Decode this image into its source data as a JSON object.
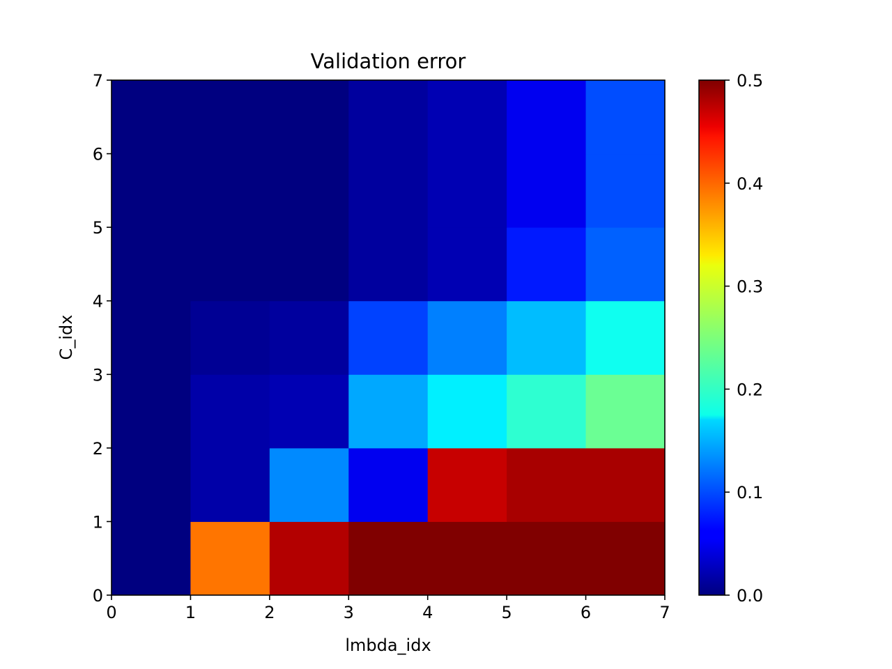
{
  "chart_data": {
    "type": "heatmap",
    "title": "Validation error",
    "xlabel": "lmbda_idx",
    "ylabel": "C_idx",
    "xlim": [
      0,
      7
    ],
    "ylim": [
      0,
      7
    ],
    "x_ticks": [
      "0",
      "1",
      "2",
      "3",
      "4",
      "5",
      "6",
      "7"
    ],
    "y_ticks": [
      "0",
      "1",
      "2",
      "3",
      "4",
      "5",
      "6",
      "7"
    ],
    "colormap": "jet",
    "color_range": [
      0.0,
      0.5
    ],
    "colorbar_ticks": [
      "0.0",
      "0.1",
      "0.2",
      "0.3",
      "0.4",
      "0.5"
    ],
    "grid": false,
    "rows_from_bottom": [
      [
        0.0,
        0.38,
        0.475,
        0.5,
        0.5,
        0.5,
        0.5
      ],
      [
        0.0,
        0.02,
        0.13,
        0.055,
        0.465,
        0.48,
        0.48
      ],
      [
        0.0,
        0.02,
        0.025,
        0.145,
        0.18,
        0.21,
        0.24
      ],
      [
        0.0,
        0.01,
        0.015,
        0.095,
        0.125,
        0.155,
        0.195
      ],
      [
        0.0,
        0.0,
        0.0,
        0.015,
        0.025,
        0.075,
        0.11
      ],
      [
        0.0,
        0.0,
        0.0,
        0.015,
        0.025,
        0.055,
        0.1
      ],
      [
        0.0,
        0.0,
        0.0,
        0.015,
        0.025,
        0.055,
        0.1
      ]
    ]
  }
}
